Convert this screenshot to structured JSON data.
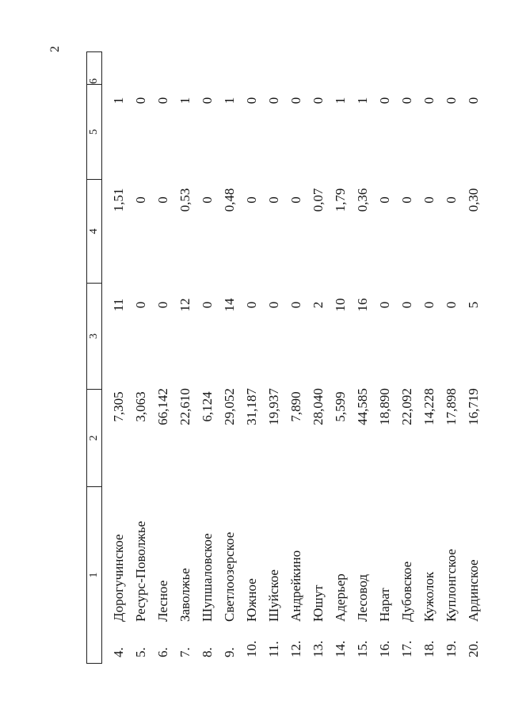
{
  "page": {
    "number": "2"
  },
  "table": {
    "headers": [
      "1",
      "2",
      "3",
      "4",
      "5",
      "6"
    ],
    "rows": [
      {
        "n": "4.",
        "name": "Дорогучинское",
        "c3": "7,305",
        "c4": "11",
        "c5": "1,51",
        "c6": "1"
      },
      {
        "n": "5.",
        "name": "Ресурс-Поволжье",
        "c3": "3,063",
        "c4": "0",
        "c5": "0",
        "c6": "0"
      },
      {
        "n": "6.",
        "name": "Лесное",
        "c3": "66,142",
        "c4": "0",
        "c5": "0",
        "c6": "0"
      },
      {
        "n": "7.",
        "name": "Заволжье",
        "c3": "22,610",
        "c4": "12",
        "c5": "0,53",
        "c6": "1"
      },
      {
        "n": "8.",
        "name": "Шупшаловское",
        "c3": "6,124",
        "c4": "0",
        "c5": "0",
        "c6": "0"
      },
      {
        "n": "9.",
        "name": "Светлоозерское",
        "c3": "29,052",
        "c4": "14",
        "c5": "0,48",
        "c6": "1"
      },
      {
        "n": "10.",
        "name": "Южное",
        "c3": "31,187",
        "c4": "0",
        "c5": "0",
        "c6": "0"
      },
      {
        "n": "11.",
        "name": "Шуйское",
        "c3": "19,937",
        "c4": "0",
        "c5": "0",
        "c6": "0"
      },
      {
        "n": "12.",
        "name": "Андрейкино",
        "c3": "7,890",
        "c4": "0",
        "c5": "0",
        "c6": "0"
      },
      {
        "n": "13.",
        "name": "Юшут",
        "c3": "28,040",
        "c4": "2",
        "c5": "0,07",
        "c6": "0"
      },
      {
        "n": "14.",
        "name": "Адерьер",
        "c3": "5,599",
        "c4": "10",
        "c5": "1,79",
        "c6": "1"
      },
      {
        "n": "15.",
        "name": "Лесовод",
        "c3": "44,585",
        "c4": "16",
        "c5": "0,36",
        "c6": "1"
      },
      {
        "n": "16.",
        "name": "Нарат",
        "c3": "18,890",
        "c4": "0",
        "c5": "0",
        "c6": "0"
      },
      {
        "n": "17.",
        "name": "Дубовское",
        "c3": "22,092",
        "c4": "0",
        "c5": "0",
        "c6": "0"
      },
      {
        "n": "18.",
        "name": "Кужолок",
        "c3": "14,228",
        "c4": "0",
        "c5": "0",
        "c6": "0"
      },
      {
        "n": "19.",
        "name": "Куплонгское",
        "c3": "17,898",
        "c4": "0",
        "c5": "0",
        "c6": "0"
      },
      {
        "n": "20.",
        "name": "Ардинское",
        "c3": "16,719",
        "c4": "5",
        "c5": "0,30",
        "c6": "0"
      }
    ]
  }
}
